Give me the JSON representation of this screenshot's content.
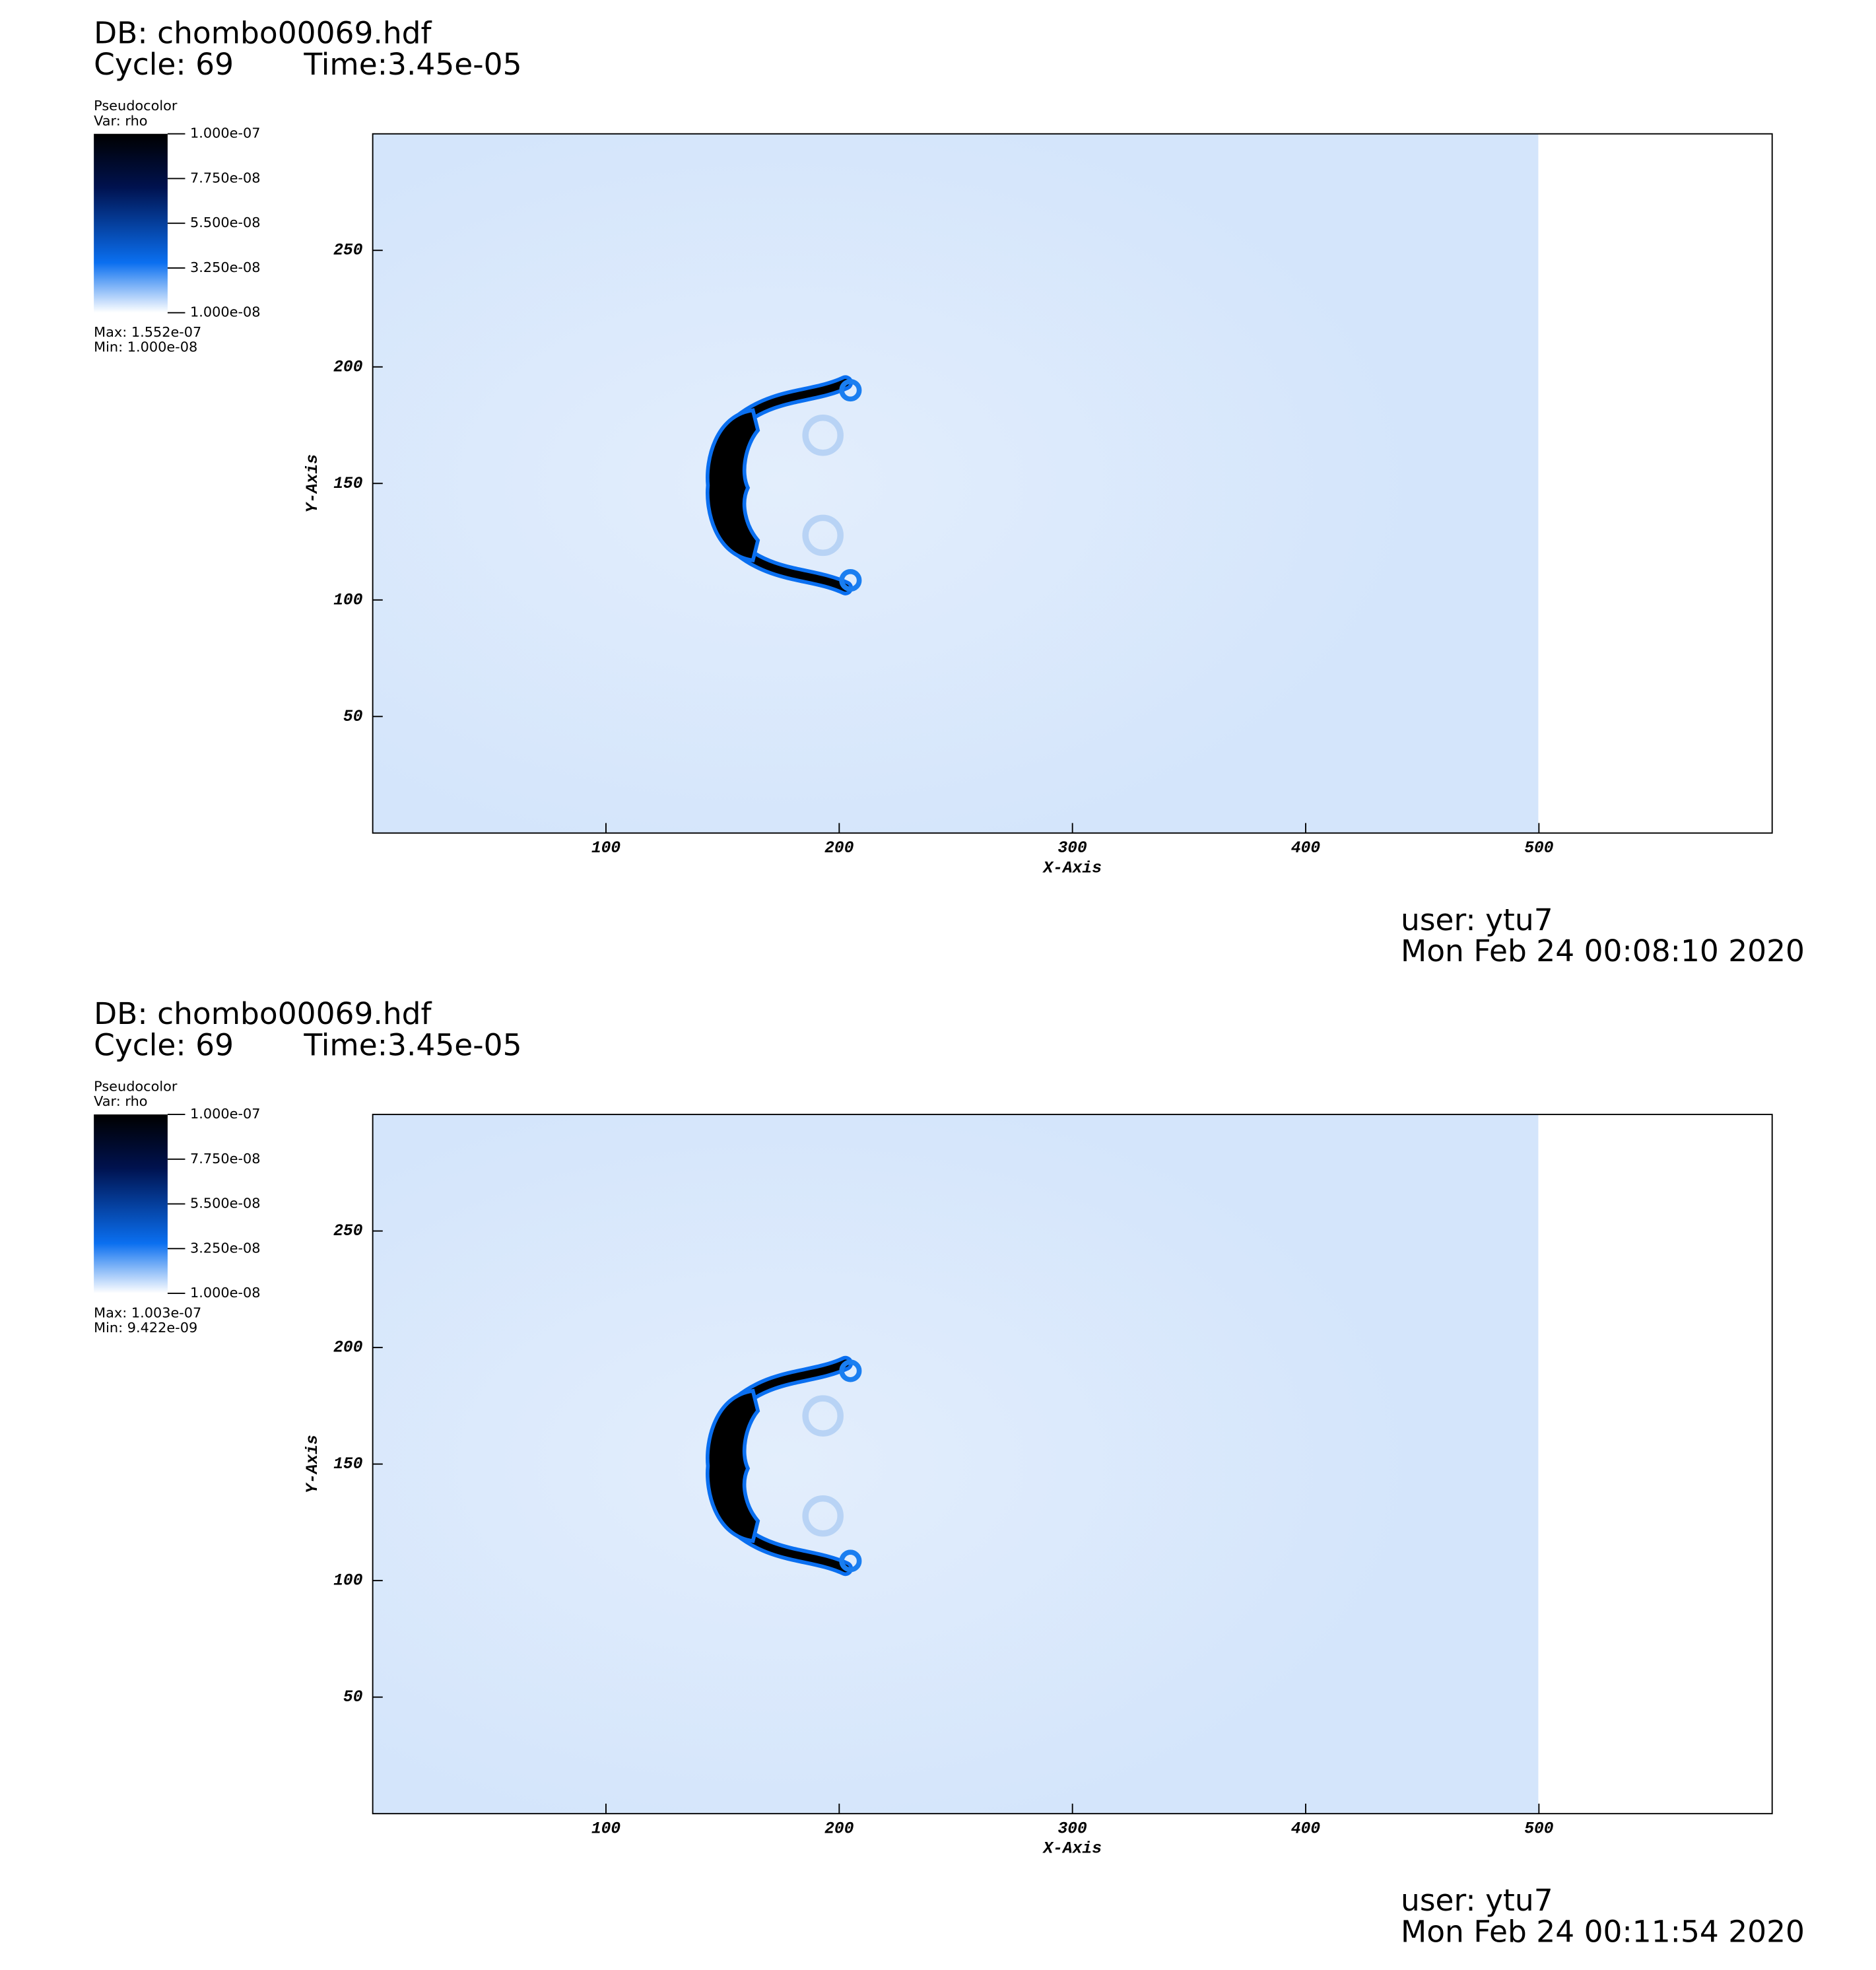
{
  "chart_data": [
    {
      "type": "pseudocolor",
      "db": "DB: chombo00069.hdf",
      "cycle": "Cycle: 69",
      "time": "Time:3.45e-05",
      "legend_title": "Pseudocolor",
      "variable": "Var: rho",
      "clim": [
        1e-08,
        1e-07
      ],
      "cticks": [
        {
          "value": 1e-07,
          "label": "1.000e-07"
        },
        {
          "value": 7.75e-08,
          "label": "7.750e-08"
        },
        {
          "value": 5.5e-08,
          "label": "5.500e-08"
        },
        {
          "value": 3.25e-08,
          "label": "3.250e-08"
        },
        {
          "value": 1e-08,
          "label": "1.000e-08"
        }
      ],
      "max_label": "Max:  1.552e-07",
      "min_label": "Min:  1.000e-08",
      "xlabel": "X-Axis",
      "ylabel": "Y-Axis",
      "xlim": [
        0,
        600
      ],
      "ylim": [
        0,
        300
      ],
      "xticks": [
        100,
        200,
        300,
        400,
        500
      ],
      "yticks": [
        50,
        100,
        150,
        200,
        250
      ],
      "user": "user: ytu7",
      "date": "Mon Feb 24 00:08:10 2020"
    },
    {
      "type": "pseudocolor",
      "db": "DB: chombo00069.hdf",
      "cycle": "Cycle: 69",
      "time": "Time:3.45e-05",
      "legend_title": "Pseudocolor",
      "variable": "Var: rho",
      "clim": [
        1e-08,
        1e-07
      ],
      "cticks": [
        {
          "value": 1e-07,
          "label": "1.000e-07"
        },
        {
          "value": 7.75e-08,
          "label": "7.750e-08"
        },
        {
          "value": 5.5e-08,
          "label": "5.500e-08"
        },
        {
          "value": 3.25e-08,
          "label": "3.250e-08"
        },
        {
          "value": 1e-08,
          "label": "1.000e-08"
        }
      ],
      "max_label": "Max:  1.003e-07",
      "min_label": "Min:  9.422e-09",
      "xlabel": "X-Axis",
      "ylabel": "Y-Axis",
      "xlim": [
        0,
        600
      ],
      "ylim": [
        0,
        300
      ],
      "xticks": [
        100,
        200,
        300,
        400,
        500
      ],
      "yticks": [
        50,
        100,
        150,
        200,
        250
      ],
      "user": "user: ytu7",
      "date": "Mon Feb 24 00:11:54 2020"
    }
  ]
}
